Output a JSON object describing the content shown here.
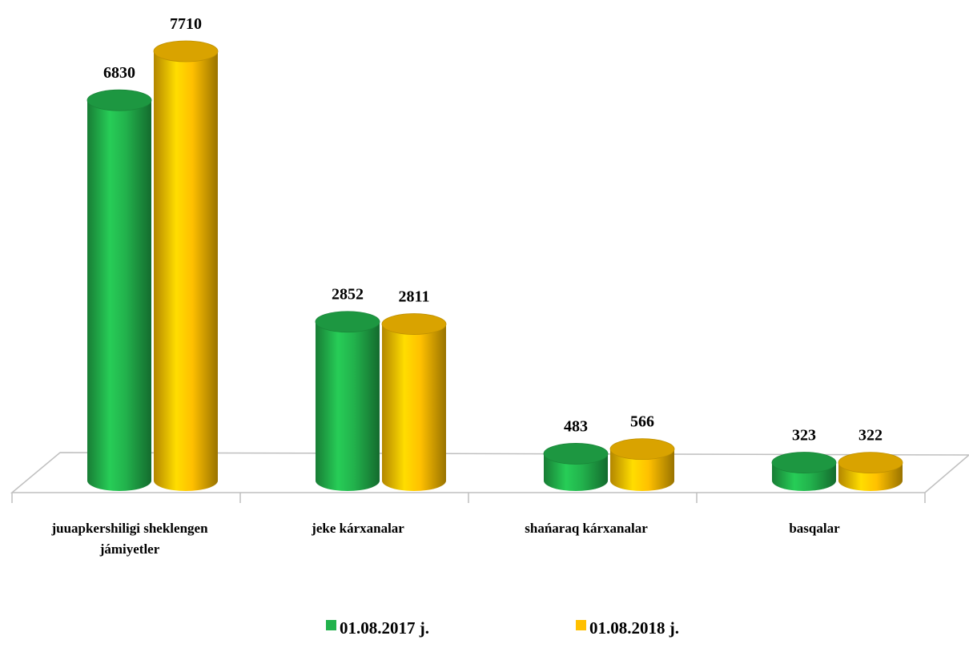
{
  "chart_data": {
    "type": "bar",
    "categories": [
      "juuapkershiligi sheklengen jámiyetler",
      "jeke kárxanalar",
      "shańaraq kárxanalar",
      "basqalar"
    ],
    "series": [
      {
        "name": "01.08.2017 j.",
        "color": "#22b24c",
        "values": [
          6830,
          2852,
          483,
          323
        ]
      },
      {
        "name": "01.08.2018 j.",
        "color": "#ffc000",
        "values": [
          7710,
          2811,
          566,
          322
        ]
      }
    ],
    "legend": "bottom"
  }
}
